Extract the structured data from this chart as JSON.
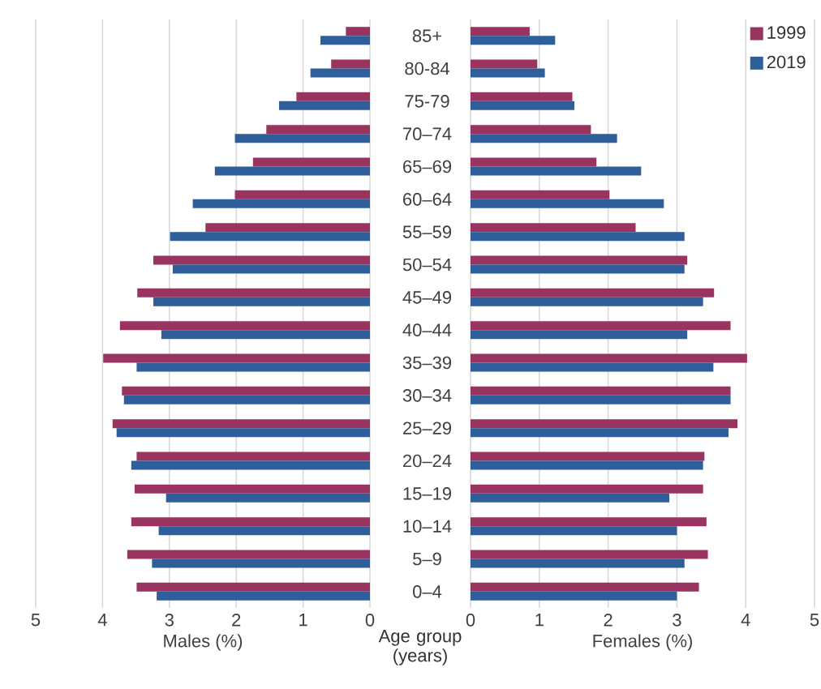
{
  "chart_data": [
    {
      "type": "bar",
      "orientation": "horizontal",
      "xlabel": "Males (%)",
      "ylabel": "Age group (years)",
      "categories": [
        "85+",
        "80-84",
        "75-79",
        "70–74",
        "65–69",
        "60–64",
        "55–59",
        "50–54",
        "45–49",
        "40–44",
        "35–39",
        "30–34",
        "25–29",
        "20–24",
        "15–19",
        "10–14",
        "5–9",
        "0–4"
      ],
      "series": [
        {
          "color": "#993360",
          "values": [
            0.36,
            0.58,
            1.1,
            1.55,
            1.75,
            2.02,
            2.46,
            3.24,
            3.48,
            3.74,
            3.99,
            3.71,
            3.85,
            3.49,
            3.52,
            3.57,
            3.63,
            3.49
          ]
        },
        {
          "color": "#2e5f9a",
          "values": [
            0.74,
            0.89,
            1.36,
            2.02,
            2.32,
            2.65,
            2.99,
            2.95,
            3.24,
            3.12,
            3.49,
            3.68,
            3.79,
            3.57,
            3.05,
            3.16,
            3.26,
            3.19
          ]
        }
      ],
      "xlim": [
        5,
        0
      ],
      "xticks": [
        0,
        1,
        2,
        3,
        4,
        5
      ],
      "grid": "x"
    },
    {
      "type": "bar",
      "orientation": "horizontal",
      "xlabel": "Females (%)",
      "categories": [
        null,
        null,
        null,
        null,
        null,
        null,
        null,
        null,
        null,
        null,
        null,
        null,
        null,
        null,
        null,
        null,
        null,
        null
      ],
      "series": [
        {
          "name": "1999",
          "color": "#993360",
          "values": [
            0.86,
            0.97,
            1.48,
            1.75,
            1.83,
            2.02,
            2.4,
            3.15,
            3.54,
            3.78,
            4.02,
            3.78,
            3.88,
            3.4,
            3.38,
            3.43,
            3.45,
            3.32
          ]
        },
        {
          "name": "2019",
          "color": "#2e5f9a",
          "values": [
            1.23,
            1.08,
            1.51,
            2.13,
            2.48,
            2.81,
            3.11,
            3.11,
            3.38,
            3.15,
            3.53,
            3.78,
            3.75,
            3.38,
            2.89,
            3.0,
            3.11,
            3.0
          ]
        }
      ],
      "xlim": [
        0,
        5
      ],
      "xticks": [
        0,
        1,
        2,
        3,
        4,
        5
      ],
      "grid": "x",
      "legend": "top right",
      "tick_labels": "x"
    }
  ]
}
